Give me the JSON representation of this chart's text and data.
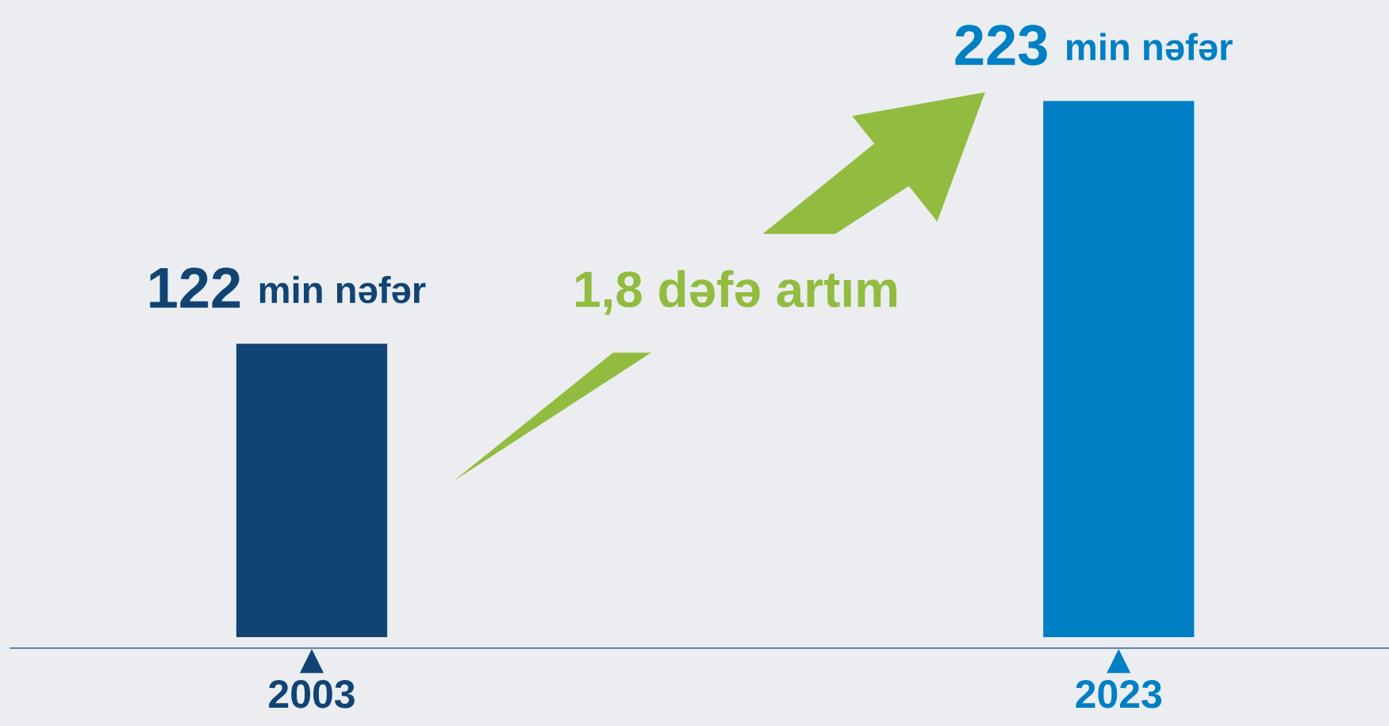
{
  "chart_data": {
    "type": "bar",
    "categories": [
      "2003",
      "2023"
    ],
    "values": [
      122,
      223
    ],
    "colors": [
      "#114474",
      "#007fc4"
    ],
    "value_labels": [
      "122 min nəfər",
      "223 min nəfər"
    ],
    "ylim": [
      0,
      265
    ],
    "annotations": [
      "1,8 dəfə artım"
    ]
  }
}
